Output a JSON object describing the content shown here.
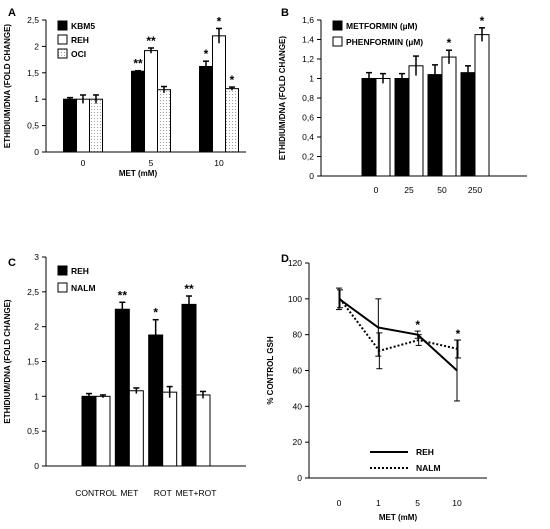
{
  "chart_data": [
    {
      "panel": "A",
      "type": "bar",
      "ylabel": "ETHIDIUM/DNA (FOLD CHANGE)",
      "xlabel": "MET (mM)",
      "ylim": [
        0,
        2.5
      ],
      "yticks": [
        "0",
        "0,5",
        "1",
        "1,5",
        "2",
        "2,5"
      ],
      "ytick_values": [
        0,
        0.5,
        1,
        1.5,
        2,
        2.5
      ],
      "categories": [
        "0",
        "5",
        "10"
      ],
      "legend_position": "top-left",
      "series": [
        {
          "name": "KBM5",
          "fill": "solid",
          "values": [
            1.0,
            1.53,
            1.62
          ],
          "errors": [
            0.03,
            0.01,
            0.1
          ],
          "markers": [
            "",
            "**",
            "*"
          ]
        },
        {
          "name": "REH",
          "fill": "white",
          "values": [
            1.0,
            1.92,
            2.2
          ],
          "errors": [
            0.08,
            0.05,
            0.14
          ],
          "markers": [
            "",
            "**",
            "*"
          ]
        },
        {
          "name": "OCI",
          "fill": "dotted",
          "values": [
            1.0,
            1.18,
            1.2
          ],
          "errors": [
            0.08,
            0.06,
            0.03
          ],
          "markers": [
            "",
            "",
            "*"
          ]
        }
      ]
    },
    {
      "panel": "B",
      "type": "bar",
      "ylabel": "ETHIDIUM/DNA (FOLD CHANGE)",
      "xlabel": "",
      "ylim": [
        0,
        1.6
      ],
      "yticks": [
        "0",
        "0,2",
        "0,4",
        "0,6",
        "0,8",
        "1",
        "1,2",
        "1,4",
        "1,6"
      ],
      "ytick_values": [
        0,
        0.2,
        0.4,
        0.6,
        0.8,
        1.0,
        1.2,
        1.4,
        1.6
      ],
      "categories": [
        "0",
        "25",
        "50",
        "250"
      ],
      "legend_position": "top-left",
      "series": [
        {
          "name": "METFORMIN (µM)",
          "fill": "solid",
          "values": [
            1.0,
            1.0,
            1.04,
            1.06
          ],
          "errors": [
            0.06,
            0.05,
            0.1,
            0.07
          ],
          "markers": [
            "",
            "",
            "",
            ""
          ]
        },
        {
          "name": "PHENFORMIN (µM)",
          "fill": "white",
          "values": [
            1.0,
            1.13,
            1.22,
            1.45
          ],
          "errors": [
            0.05,
            0.1,
            0.07,
            0.07
          ],
          "markers": [
            "",
            "",
            "*",
            "*"
          ]
        }
      ]
    },
    {
      "panel": "C",
      "type": "bar",
      "ylabel": "ETHIDIUM/DNA (FOLD CHANGE)",
      "xlabel": "",
      "ylim": [
        0,
        3
      ],
      "yticks": [
        "0",
        "0,5",
        "1",
        "1,5",
        "2",
        "2,5",
        "3"
      ],
      "ytick_values": [
        0,
        0.5,
        1,
        1.5,
        2,
        2.5,
        3
      ],
      "categories": [
        "CONTROL",
        "MET",
        "ROT",
        "MET+ROT"
      ],
      "legend_position": "top-left",
      "series": [
        {
          "name": "REH",
          "fill": "solid",
          "values": [
            1.0,
            2.25,
            1.88,
            2.32
          ],
          "errors": [
            0.04,
            0.1,
            0.22,
            0.12
          ],
          "markers": [
            "",
            "**",
            "*",
            "**"
          ]
        },
        {
          "name": "NALM",
          "fill": "white",
          "values": [
            1.0,
            1.08,
            1.06,
            1.02
          ],
          "errors": [
            0.02,
            0.04,
            0.08,
            0.05
          ],
          "markers": [
            "",
            "",
            "",
            ""
          ]
        }
      ]
    },
    {
      "panel": "D",
      "type": "line",
      "ylabel": "% CONTROL GSH",
      "xlabel": "MET (mM)",
      "ylim": [
        0,
        120
      ],
      "yticks": [
        "0",
        "20",
        "40",
        "60",
        "80",
        "100",
        "120"
      ],
      "ytick_values": [
        0,
        20,
        40,
        60,
        80,
        100,
        120
      ],
      "categories": [
        "0",
        "1",
        "5",
        "10"
      ],
      "legend_position": "bottom-right",
      "series": [
        {
          "name": "REH",
          "style": "solid",
          "values": [
            100,
            84,
            80,
            60
          ],
          "errors": [
            6,
            16,
            2,
            17
          ],
          "markers": [
            "",
            "",
            "*",
            ""
          ]
        },
        {
          "name": "NALM",
          "style": "dotted",
          "values": [
            100,
            71,
            77,
            72
          ],
          "errors": [
            5,
            10,
            3,
            5
          ],
          "markers": [
            "",
            "",
            "",
            "*"
          ]
        }
      ]
    }
  ],
  "colors": {
    "ink": "#000000",
    "white": "#ffffff",
    "dots": "#9a9a9a"
  }
}
